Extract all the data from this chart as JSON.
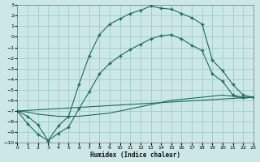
{
  "xlabel": "Humidex (Indice chaleur)",
  "xlim": [
    0,
    23
  ],
  "ylim": [
    -10,
    3
  ],
  "xticks": [
    0,
    1,
    2,
    3,
    4,
    5,
    6,
    7,
    8,
    9,
    10,
    11,
    12,
    13,
    14,
    15,
    16,
    17,
    18,
    19,
    20,
    21,
    22,
    23
  ],
  "yticks": [
    3,
    2,
    1,
    0,
    -1,
    -2,
    -3,
    -4,
    -5,
    -6,
    -7,
    -8,
    -9,
    -10
  ],
  "bg_color": "#cce8e6",
  "grid_color": "#a0ccc9",
  "line_color": "#1a6b5a",
  "curve1_x": [
    0,
    1,
    2,
    3,
    4,
    5,
    6,
    7,
    8,
    9,
    10,
    11,
    12,
    13,
    14,
    15,
    16,
    17,
    18,
    19,
    20,
    21,
    22,
    23
  ],
  "curve1_y": [
    -7.0,
    -8.2,
    -9.2,
    -9.8,
    -8.4,
    -7.5,
    -4.5,
    -1.8,
    0.2,
    1.2,
    1.7,
    2.2,
    2.5,
    2.9,
    2.7,
    2.6,
    2.2,
    1.8,
    1.2,
    -2.2,
    -3.2,
    -4.5,
    -5.5,
    -5.7
  ],
  "curve2_x": [
    0,
    1,
    2,
    3,
    4,
    5,
    6,
    7,
    8,
    9,
    10,
    11,
    12,
    13,
    14,
    15,
    16,
    17,
    18,
    19,
    20,
    21,
    22,
    23
  ],
  "curve2_y": [
    -7.0,
    -7.5,
    -8.3,
    -9.8,
    -9.1,
    -8.5,
    -6.8,
    -5.2,
    -3.5,
    -2.5,
    -1.8,
    -1.2,
    -0.7,
    -0.2,
    0.1,
    0.2,
    -0.2,
    -0.8,
    -1.3,
    -3.5,
    -4.2,
    -5.5,
    -5.7,
    -5.7
  ],
  "curve3_x": [
    0,
    1,
    2,
    3,
    4,
    5,
    6,
    7,
    8,
    9,
    10,
    11,
    12,
    13,
    14,
    15,
    16,
    17,
    18,
    19,
    20,
    21,
    22,
    23
  ],
  "curve3_y": [
    -7.0,
    -7.1,
    -7.3,
    -7.4,
    -7.5,
    -7.5,
    -7.5,
    -7.4,
    -7.3,
    -7.2,
    -7.0,
    -6.8,
    -6.6,
    -6.4,
    -6.2,
    -6.0,
    -5.9,
    -5.8,
    -5.7,
    -5.6,
    -5.5,
    -5.6,
    -5.8,
    -5.7
  ],
  "curve4_x": [
    0,
    23
  ],
  "curve4_y": [
    -7.0,
    -5.7
  ]
}
